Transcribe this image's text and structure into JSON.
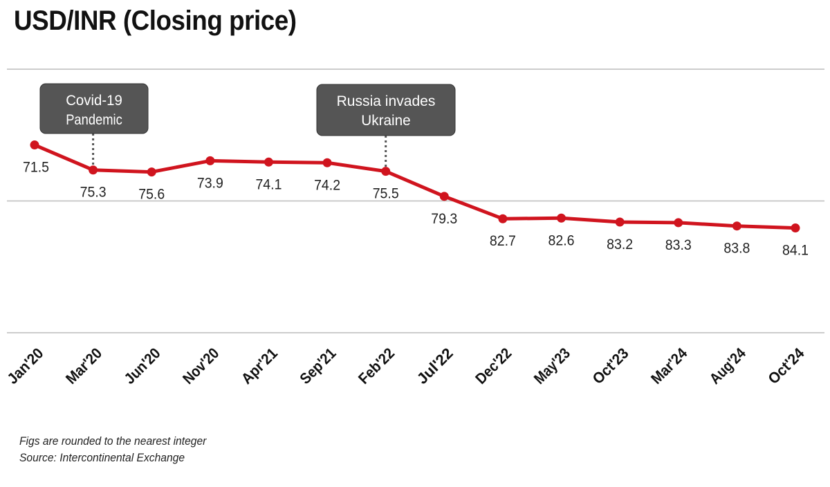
{
  "chart_data": {
    "type": "line",
    "title": "USD/INR (Closing price)",
    "categories": [
      "Jan'20",
      "Mar'20",
      "Jun'20",
      "Nov'20",
      "Apr'21",
      "Sep'21",
      "Feb'22",
      "Jul'22",
      "Dec'22",
      "May'23",
      "Oct'23",
      "Mar'24",
      "Aug'24",
      "Oct'24"
    ],
    "values": [
      71.5,
      75.3,
      75.6,
      73.9,
      74.1,
      74.2,
      75.5,
      79.3,
      82.7,
      82.6,
      83.2,
      83.3,
      83.8,
      84.1
    ],
    "ylim": [
      60,
      100
    ],
    "y_inverted": true,
    "gridlines": [
      60,
      80,
      100
    ],
    "grid": true,
    "y_tick_labels_shown": false,
    "line_color": "#d0141e",
    "annotations": [
      {
        "text_lines": [
          "Covid-19",
          "Pandemic"
        ],
        "category": "Mar'20"
      },
      {
        "text_lines": [
          "Russia invades",
          "Ukraine"
        ],
        "category": "Feb'22"
      }
    ],
    "annotation_color": "#555555"
  },
  "notes": [
    "Figs are rounded to the nearest integer",
    "Source: Intercontinental Exchange"
  ]
}
